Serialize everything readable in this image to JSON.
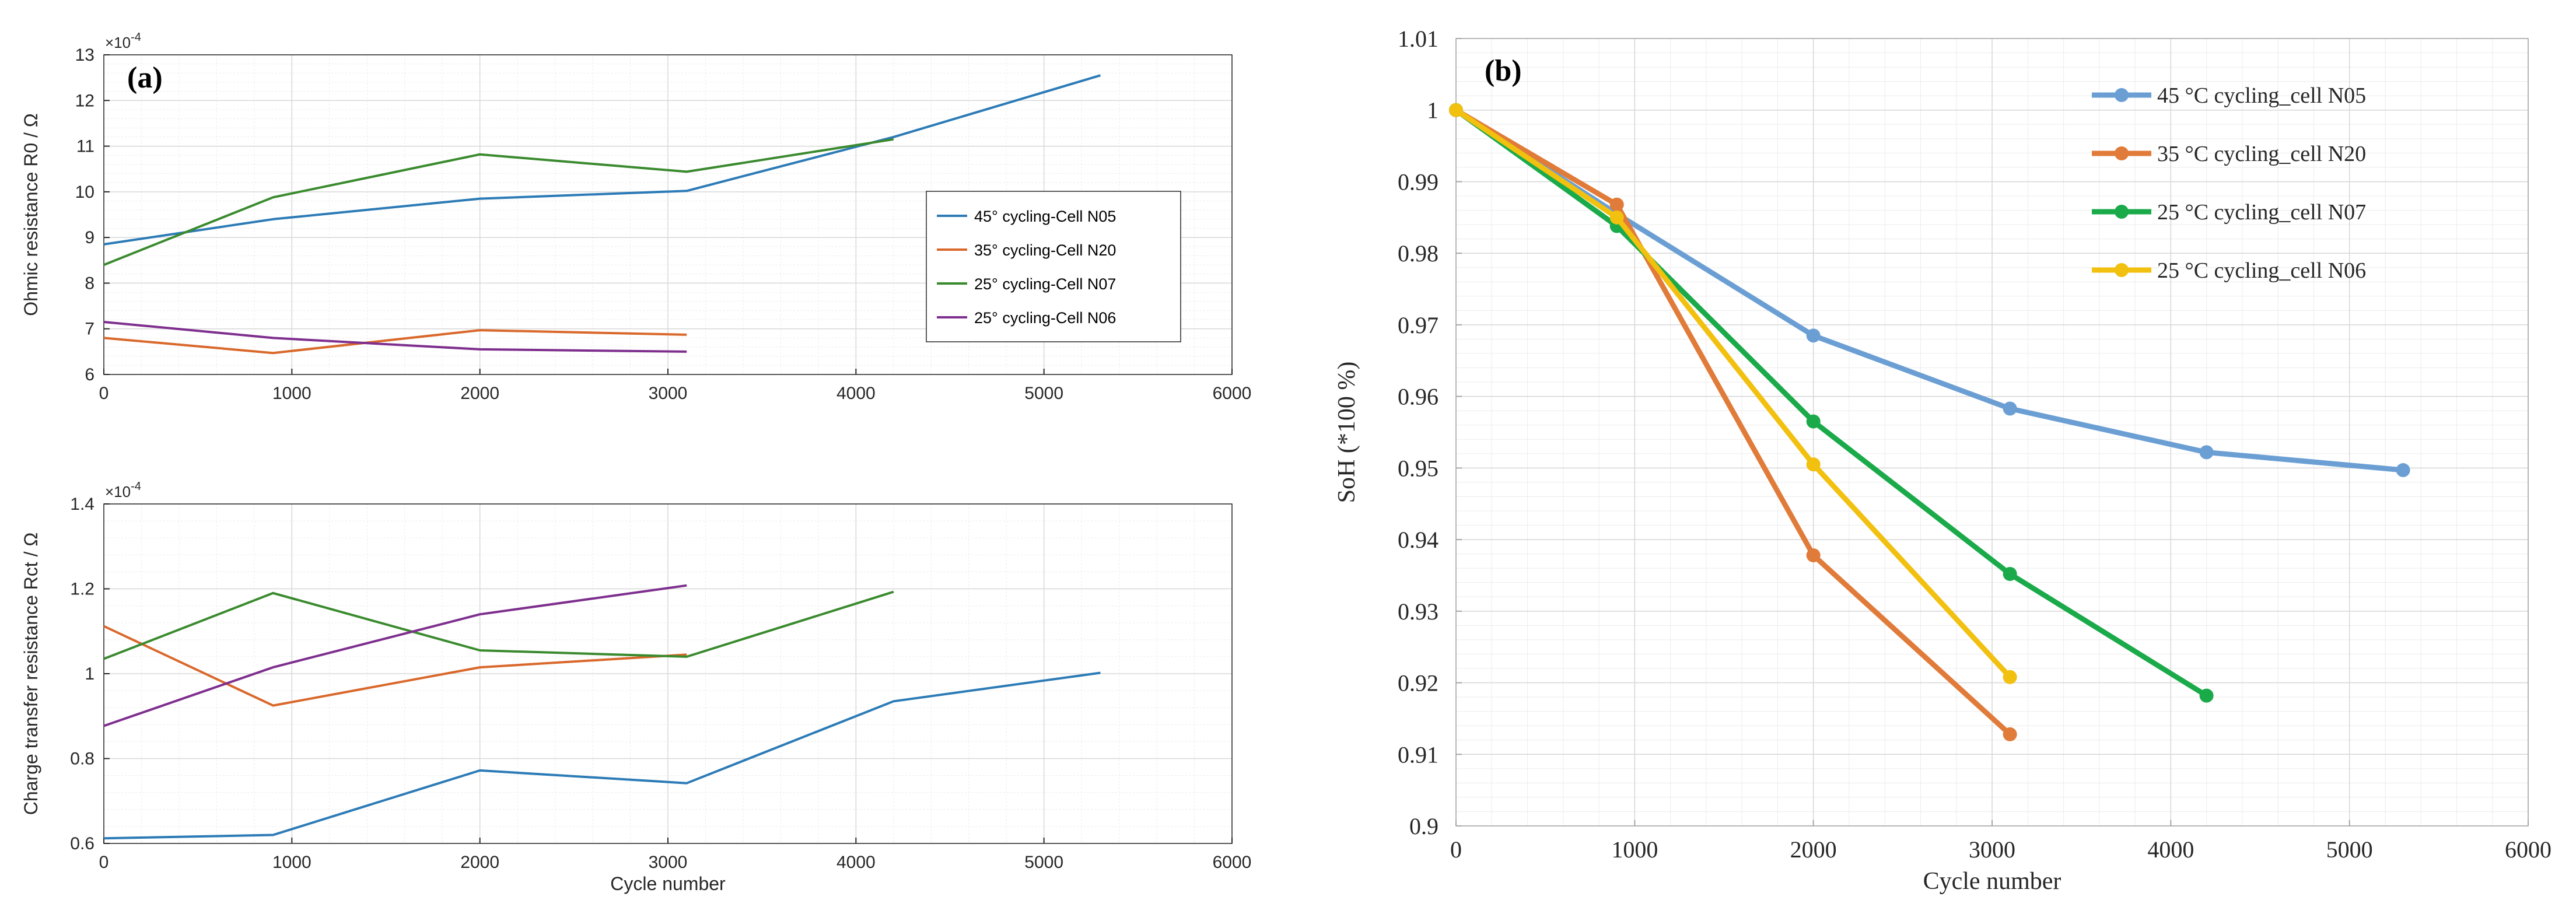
{
  "chart_data": [
    {
      "panel": "(a)",
      "type": "line",
      "exponent": "×10^-4",
      "xlabel": "",
      "ylabel": "Ohmic resistance R0 / Ω",
      "xlim": [
        0,
        6000
      ],
      "ylim": [
        6,
        13
      ],
      "xticks": [
        0,
        1000,
        2000,
        3000,
        4000,
        5000,
        6000
      ],
      "yticks": [
        6,
        7,
        8,
        9,
        10,
        11,
        12,
        13
      ],
      "legend": "center-right",
      "series": [
        {
          "name": "45° cycling-Cell N05",
          "color": "#2c7bb6",
          "x": [
            0,
            900,
            2000,
            3100,
            4200,
            5300
          ],
          "y": [
            8.85,
            9.4,
            9.85,
            10.02,
            11.2,
            12.55
          ]
        },
        {
          "name": "35° cycling-Cell N20",
          "color": "#d9682b",
          "x": [
            0,
            900,
            2000,
            3100
          ],
          "y": [
            6.8,
            6.47,
            6.97,
            6.87
          ]
        },
        {
          "name": "25° cycling-Cell N07",
          "color": "#3a8a2e",
          "x": [
            0,
            900,
            2000,
            3100,
            4200
          ],
          "y": [
            8.4,
            9.88,
            10.82,
            10.44,
            11.15
          ]
        },
        {
          "name": "25° cycling-Cell N06",
          "color": "#7e2f8e",
          "x": [
            0,
            900,
            2000,
            3100
          ],
          "y": [
            7.15,
            6.8,
            6.55,
            6.5
          ]
        }
      ]
    },
    {
      "panel": "",
      "type": "line",
      "exponent": "×10^-4",
      "xlabel": "Cycle number",
      "ylabel": "Charge transfer resistance Rct / Ω",
      "xlim": [
        0,
        6000
      ],
      "ylim": [
        0.6,
        1.4
      ],
      "xticks": [
        0,
        1000,
        2000,
        3000,
        4000,
        5000,
        6000
      ],
      "yticks": [
        0.6,
        0.8,
        1,
        1.2,
        1.4
      ],
      "series": [
        {
          "name": "45° cycling-Cell N05",
          "color": "#2c7bb6",
          "x": [
            0,
            900,
            2000,
            3100,
            4200,
            5300
          ],
          "y": [
            0.612,
            0.62,
            0.772,
            0.742,
            0.935,
            1.002
          ]
        },
        {
          "name": "35° cycling-Cell N20",
          "color": "#d9682b",
          "x": [
            0,
            900,
            2000,
            3100
          ],
          "y": [
            1.112,
            0.925,
            1.015,
            1.045
          ]
        },
        {
          "name": "25° cycling-Cell N07",
          "color": "#3a8a2e",
          "x": [
            0,
            900,
            2000,
            3100,
            4200
          ],
          "y": [
            1.035,
            1.19,
            1.055,
            1.04,
            1.193
          ]
        },
        {
          "name": "25° cycling-Cell N06",
          "color": "#7e2f8e",
          "x": [
            0,
            900,
            2000,
            3100
          ],
          "y": [
            0.877,
            1.015,
            1.14,
            1.208
          ]
        }
      ]
    },
    {
      "panel": "(b)",
      "type": "line",
      "xlabel": "Cycle number",
      "ylabel": "SoH (*100 %)",
      "xlim": [
        0,
        6000
      ],
      "ylim": [
        0.9,
        1.01
      ],
      "xticks": [
        0,
        1000,
        2000,
        3000,
        4000,
        5000,
        6000
      ],
      "yticks": [
        0.9,
        0.91,
        0.92,
        0.93,
        0.94,
        0.95,
        0.96,
        0.97,
        0.98,
        0.99,
        1,
        1.01
      ],
      "legend": "top-right",
      "series": [
        {
          "name": "45 °C cycling_cell N05",
          "color": "#6b9fd4",
          "x": [
            0,
            900,
            2000,
            3100,
            4200,
            5300
          ],
          "y": [
            1.0,
            0.9855,
            0.9685,
            0.9583,
            0.9522,
            0.9497
          ]
        },
        {
          "name": "35 °C cycling_cell N20",
          "color": "#e07b39",
          "x": [
            0,
            900,
            2000,
            3100
          ],
          "y": [
            1.0,
            0.9868,
            0.9378,
            0.9128
          ]
        },
        {
          "name": "25 °C cycling_cell N07",
          "color": "#1aaa4a",
          "x": [
            0,
            900,
            2000,
            3100,
            4200
          ],
          "y": [
            1.0,
            0.9838,
            0.9565,
            0.9352,
            0.9182
          ]
        },
        {
          "name": "25 °C cycling_cell N06",
          "color": "#f2c00f",
          "x": [
            0,
            900,
            2000,
            3100
          ],
          "y": [
            1.0,
            0.985,
            0.9505,
            0.9208
          ]
        }
      ]
    }
  ]
}
